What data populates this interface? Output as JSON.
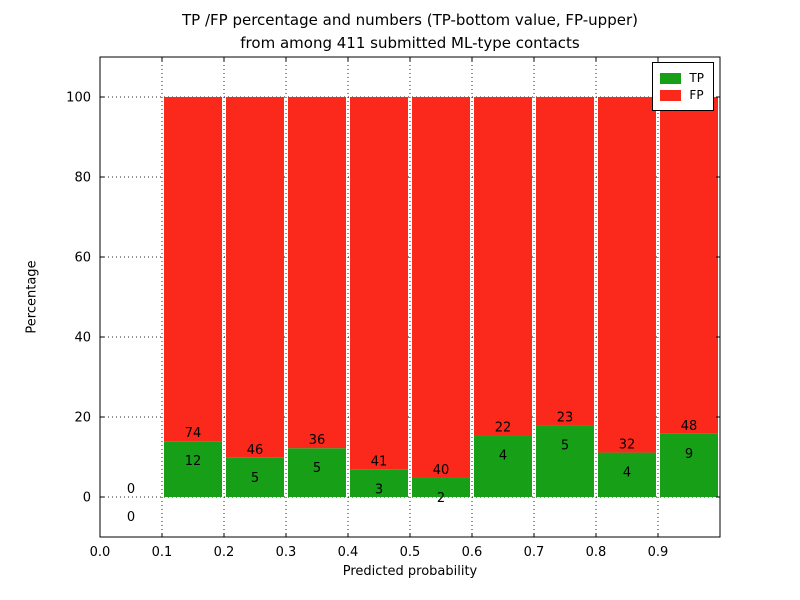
{
  "chart_data": {
    "type": "bar",
    "stacked": true,
    "title": "TP /FP percentage and numbers (TP-bottom value, FP-upper)",
    "subtitle": "from among 411 submitted ML-type contacts",
    "xlabel": "Predicted probability",
    "ylabel": "Percentage",
    "total_contacts": 411,
    "xlim": [
      0.0,
      1.0
    ],
    "ylim": [
      -10,
      110
    ],
    "xticks": [
      0.0,
      0.1,
      0.2,
      0.3,
      0.4,
      0.5,
      0.6,
      0.7,
      0.8,
      0.9
    ],
    "yticks": [
      0,
      20,
      40,
      60,
      80,
      100
    ],
    "grid": true,
    "legend_position": "upper right",
    "legend": [
      {
        "label": "TP",
        "color": "#17a017"
      },
      {
        "label": "FP",
        "color": "#fa291c"
      }
    ],
    "bins": [
      {
        "range": [
          0.0,
          0.1
        ],
        "tp": 0,
        "fp": 0,
        "tp_pct": 0
      },
      {
        "range": [
          0.1,
          0.2
        ],
        "tp": 12,
        "fp": 74,
        "tp_pct": 13.95
      },
      {
        "range": [
          0.2,
          0.3
        ],
        "tp": 5,
        "fp": 46,
        "tp_pct": 9.8
      },
      {
        "range": [
          0.3,
          0.4
        ],
        "tp": 5,
        "fp": 36,
        "tp_pct": 12.2
      },
      {
        "range": [
          0.4,
          0.5
        ],
        "tp": 3,
        "fp": 41,
        "tp_pct": 6.82
      },
      {
        "range": [
          0.5,
          0.6
        ],
        "tp": 2,
        "fp": 40,
        "tp_pct": 4.76
      },
      {
        "range": [
          0.6,
          0.7
        ],
        "tp": 4,
        "fp": 22,
        "tp_pct": 15.38
      },
      {
        "range": [
          0.7,
          0.8
        ],
        "tp": 5,
        "fp": 23,
        "tp_pct": 17.86
      },
      {
        "range": [
          0.8,
          0.9
        ],
        "tp": 4,
        "fp": 32,
        "tp_pct": 11.11
      },
      {
        "range": [
          0.9,
          1.0
        ],
        "tp": 9,
        "fp": 48,
        "tp_pct": 15.79
      }
    ]
  }
}
